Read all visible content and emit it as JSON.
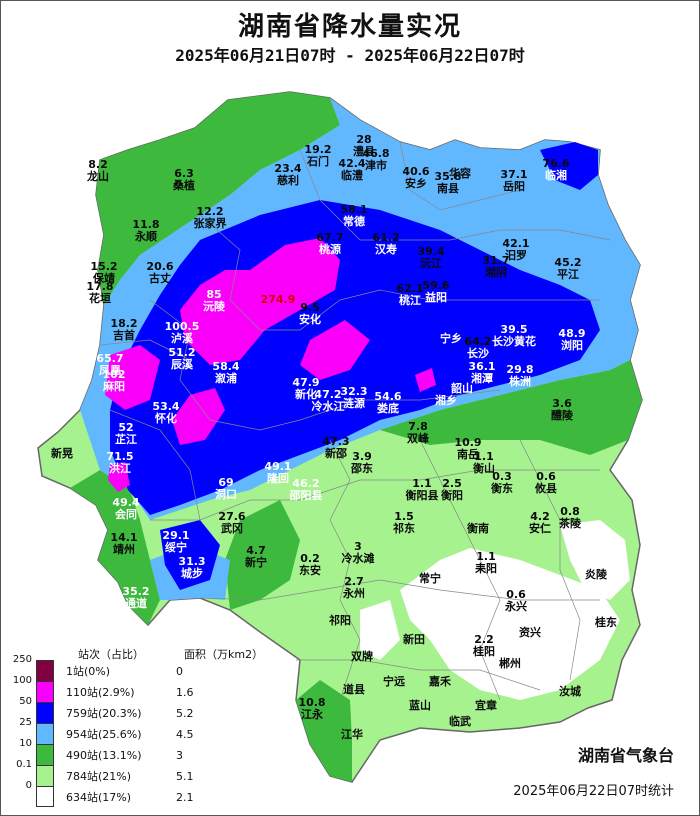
{
  "title": "湖南省降水量实况",
  "subtitle": "2025年06月21日07时 - 2025年06月22日07时",
  "agency": "湖南省气象台",
  "stamp": "2025年06月22日07时统计",
  "colors": {
    "r0": "#ffffff",
    "r01": "#a6f28f",
    "r10": "#3dba3d",
    "r25": "#61b8ff",
    "r50": "#0000ff",
    "r100": "#fa00fa",
    "r250": "#800040",
    "boundary": "#888888"
  },
  "legend": {
    "header_count": "站次（占比）",
    "header_area": "面积（万km2）",
    "levels": [
      "250",
      "100",
      "50",
      "25",
      "10",
      "0.1",
      "0"
    ],
    "rows": [
      {
        "count": "1站(0%)",
        "area": "0",
        "color": "#800040"
      },
      {
        "count": "110站(2.9%)",
        "area": "1.6",
        "color": "#fa00fa"
      },
      {
        "count": "759站(20.3%)",
        "area": "5.2",
        "color": "#0000ff"
      },
      {
        "count": "954站(25.6%)",
        "area": "4.5",
        "color": "#61b8ff"
      },
      {
        "count": "490站(13.1%)",
        "area": "3",
        "color": "#3dba3d"
      },
      {
        "count": "784站(21%)",
        "area": "5.1",
        "color": "#a6f28f"
      },
      {
        "count": "634站(17%)",
        "area": "2.1",
        "color": "#ffffff"
      }
    ]
  },
  "stations": [
    {
      "v": "8.2",
      "n": "龙山"
    },
    {
      "v": "6.3",
      "n": "桑植"
    },
    {
      "v": "19.2",
      "n": "石门"
    },
    {
      "v": "28",
      "n": "澧县"
    },
    {
      "v": "46.8",
      "n": "津市"
    },
    {
      "v": "42.4",
      "n": "临澧"
    },
    {
      "v": "23.4",
      "n": "慈利"
    },
    {
      "v": "40.6",
      "n": "安乡"
    },
    {
      "v": "35.8",
      "n": "南县"
    },
    {
      "v": "",
      "n": "华容"
    },
    {
      "v": "37.1",
      "n": "岳阳"
    },
    {
      "v": "76.6",
      "n": "临湘"
    },
    {
      "v": "12.2",
      "n": "张家界"
    },
    {
      "v": "11.8",
      "n": "永顺"
    },
    {
      "v": "58.1",
      "n": "常德"
    },
    {
      "v": "67.7",
      "n": "桃源"
    },
    {
      "v": "61.2",
      "n": "汉寿"
    },
    {
      "v": "39.4",
      "n": "沅江"
    },
    {
      "v": "42.1",
      "n": "汨罗"
    },
    {
      "v": "31.7",
      "n": "湘阴"
    },
    {
      "v": "45.2",
      "n": "平江"
    },
    {
      "v": "15.2",
      "n": "保靖"
    },
    {
      "v": "20.6",
      "n": "古丈"
    },
    {
      "v": "17.8",
      "n": "花垣"
    },
    {
      "v": "85",
      "n": "沅陵"
    },
    {
      "v": "274.9",
      "n": ""
    },
    {
      "v": "9.5",
      "n": "安化"
    },
    {
      "v": "62.1",
      "n": "桃江"
    },
    {
      "v": "59.6",
      "n": "益阳"
    },
    {
      "v": "18.2",
      "n": "吉首"
    },
    {
      "v": "100.5",
      "n": "泸溪"
    },
    {
      "v": "",
      "n": "宁乡"
    },
    {
      "v": "64.2",
      "n": "长沙"
    },
    {
      "v": "39.5",
      "n": "长沙黄花"
    },
    {
      "v": "48.9",
      "n": "浏阳"
    },
    {
      "v": "51.2",
      "n": "辰溪"
    },
    {
      "v": "65.7",
      "n": "凤凰"
    },
    {
      "v": "102",
      "n": "麻阳"
    },
    {
      "v": "58.4",
      "n": "溆浦"
    },
    {
      "v": "36.1",
      "n": "湘潭"
    },
    {
      "v": "29.8",
      "n": "株洲"
    },
    {
      "v": "",
      "n": "韶山"
    },
    {
      "v": "47.9",
      "n": "新化"
    },
    {
      "v": "47.2",
      "n": "冷水江"
    },
    {
      "v": "32.3",
      "n": "涟源"
    },
    {
      "v": "54.6",
      "n": "娄底"
    },
    {
      "v": "",
      "n": "湘乡"
    },
    {
      "v": "53.4",
      "n": "怀化"
    },
    {
      "v": "3.6",
      "n": "醴陵"
    },
    {
      "v": "52",
      "n": "芷江"
    },
    {
      "v": "7.8",
      "n": "双峰"
    },
    {
      "v": "47.3",
      "n": "新邵"
    },
    {
      "v": "3.9",
      "n": "邵东"
    },
    {
      "v": "",
      "n": "新晃"
    },
    {
      "v": "10.9",
      "n": "南岳"
    },
    {
      "v": "1.1",
      "n": "衡山"
    },
    {
      "v": "71.5",
      "n": "洪江"
    },
    {
      "v": "49.1",
      "n": "隆回"
    },
    {
      "v": "46.2",
      "n": "邵阳县"
    },
    {
      "v": "1.1",
      "n": "衡阳县"
    },
    {
      "v": "2.5",
      "n": "衡阳"
    },
    {
      "v": "0.3",
      "n": "衡东"
    },
    {
      "v": "0.6",
      "n": "攸县"
    },
    {
      "v": "69",
      "n": "洞口"
    },
    {
      "v": "49.4",
      "n": "会同"
    },
    {
      "v": "27.6",
      "n": "武冈"
    },
    {
      "v": "1.5",
      "n": "祁东"
    },
    {
      "v": "",
      "n": "衡南"
    },
    {
      "v": "4.2",
      "n": "安仁"
    },
    {
      "v": "0.8",
      "n": "茶陵"
    },
    {
      "v": "14.1",
      "n": "靖州"
    },
    {
      "v": "29.1",
      "n": "绥宁"
    },
    {
      "v": "4.7",
      "n": "新宁"
    },
    {
      "v": "0.2",
      "n": "东安"
    },
    {
      "v": "3",
      "n": "冷水滩"
    },
    {
      "v": "",
      "n": "常宁"
    },
    {
      "v": "1.1",
      "n": "耒阳"
    },
    {
      "v": "",
      "n": "炎陵"
    },
    {
      "v": "31.3",
      "n": "城步"
    },
    {
      "v": "35.2",
      "n": "通道"
    },
    {
      "v": "2.7",
      "n": "永州"
    },
    {
      "v": "0.6",
      "n": "永兴"
    },
    {
      "v": "",
      "n": "资兴"
    },
    {
      "v": "",
      "n": "桂东"
    },
    {
      "v": "",
      "n": "祁阳"
    },
    {
      "v": "",
      "n": "双牌"
    },
    {
      "v": "",
      "n": "新田"
    },
    {
      "v": "2.2",
      "n": "桂阳"
    },
    {
      "v": "",
      "n": "郴州"
    },
    {
      "v": "",
      "n": "道县"
    },
    {
      "v": "",
      "n": "宁远"
    },
    {
      "v": "",
      "n": "嘉禾"
    },
    {
      "v": "",
      "n": "汝城"
    },
    {
      "v": "",
      "n": "蓝山"
    },
    {
      "v": "",
      "n": "宜章"
    },
    {
      "v": "10.8",
      "n": "江永"
    },
    {
      "v": "",
      "n": "江华"
    },
    {
      "v": "",
      "n": "临武"
    }
  ]
}
